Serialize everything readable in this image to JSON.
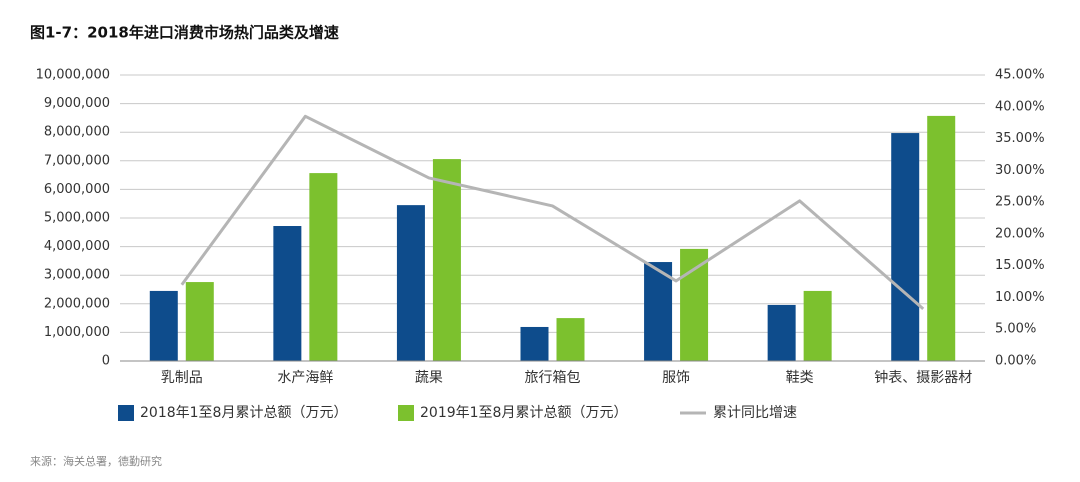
{
  "chart_data": {
    "type": "bar",
    "title": "图1-7：2018年进口消费市场热门品类及增速",
    "categories": [
      "乳制品",
      "水产海鲜",
      "蔬果",
      "旅行箱包",
      "服饰",
      "鞋类",
      "钟表、摄影器材"
    ],
    "series": [
      {
        "name": "2018年1至8月累计总额（万元）",
        "color": "#0e4c8c",
        "values": [
          2450000,
          4720000,
          5450000,
          1190000,
          3460000,
          1960000,
          7970000
        ]
      },
      {
        "name": "2019年1至8月累计总额（万元）",
        "color": "#7cc12e",
        "values": [
          2760000,
          6570000,
          7060000,
          1500000,
          3920000,
          2450000,
          8570000
        ]
      },
      {
        "name": "累计同比增速",
        "color": "#b5b5b5",
        "type": "line",
        "axis": "y2",
        "values": [
          12,
          38.5,
          28.8,
          24.4,
          12.6,
          25.2,
          8.2
        ]
      }
    ],
    "ylim": [
      0,
      10000000
    ],
    "yticks": [
      0,
      {
        "value": 1000000,
        "label": "1,000,000"
      },
      {
        "value": 2000000,
        "label": "2,000,000"
      },
      {
        "value": 3000000,
        "label": "3,000,000"
      },
      {
        "value": 4000000,
        "label": "4,000,000"
      },
      {
        "value": 5000000,
        "label": "5,000,000"
      },
      {
        "value": 6000000,
        "label": "6,000,000"
      },
      {
        "value": 7000000,
        "label": "7,000,000"
      },
      {
        "value": 8000000,
        "label": "8,000,000"
      },
      {
        "value": 9000000,
        "label": "9,000,000"
      },
      {
        "value": 10000000,
        "label": "10,000,000"
      }
    ],
    "y2lim": [
      0,
      45
    ],
    "y2ticks": [
      {
        "value": 0,
        "label": "0.00%"
      },
      {
        "value": 5,
        "label": "5.00%"
      },
      {
        "value": 10,
        "label": "10.00%"
      },
      {
        "value": 15,
        "label": "15.00%"
      },
      {
        "value": 20,
        "label": "20.00%"
      },
      {
        "value": 25,
        "label": "25.00%"
      },
      {
        "value": 30,
        "label": "30.00%"
      },
      {
        "value": 35,
        "label": "35.00%"
      },
      {
        "value": 40,
        "label": "40.00%"
      },
      {
        "value": 45,
        "label": "45.00%"
      }
    ],
    "grid": true,
    "source": "来源：海关总署，德勤研究"
  }
}
